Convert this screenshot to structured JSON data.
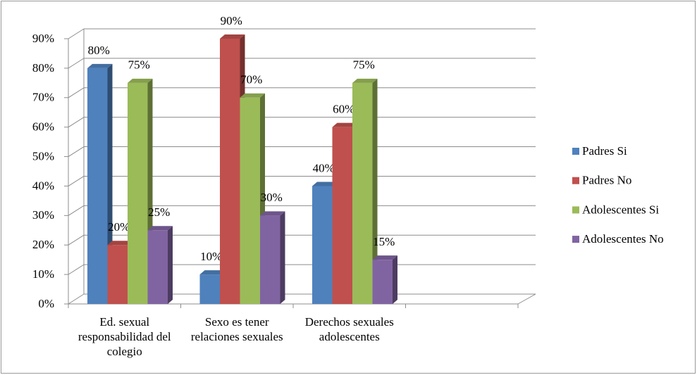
{
  "chart_data": {
    "type": "bar3d",
    "categories": [
      "Ed. sexual responsabilidad del colegio",
      "Sexo es tener relaciones sexuales",
      "Derechos sexuales adolescentes",
      null
    ],
    "series": [
      {
        "name": "Padres Si",
        "color": "#4f81bd",
        "values": [
          80,
          10,
          40,
          null
        ],
        "value_labels": [
          "80%",
          "10%",
          "40%",
          null
        ]
      },
      {
        "name": "Padres No",
        "color": "#c0504d",
        "values": [
          20,
          90,
          60,
          null
        ],
        "value_labels": [
          "20%",
          "90%",
          "60%",
          null
        ]
      },
      {
        "name": "Adolescentes Si",
        "color": "#9bbb59",
        "values": [
          75,
          70,
          75,
          null
        ],
        "value_labels": [
          "75%",
          "70%",
          "75%",
          null
        ]
      },
      {
        "name": "Adolescentes No",
        "color": "#8064a2",
        "values": [
          25,
          30,
          15,
          null
        ],
        "value_labels": [
          "25%",
          "30%",
          "15%",
          null
        ]
      }
    ],
    "ylim": [
      0,
      90
    ],
    "yticks": [
      {
        "value": 0,
        "label": "0%"
      },
      {
        "value": 10,
        "label": "10%"
      },
      {
        "value": 20,
        "label": "20%"
      },
      {
        "value": 30,
        "label": "30%"
      },
      {
        "value": 40,
        "label": "40%"
      },
      {
        "value": 50,
        "label": "50%"
      },
      {
        "value": 60,
        "label": "60%"
      },
      {
        "value": 70,
        "label": "70%"
      },
      {
        "value": 80,
        "label": "80%"
      },
      {
        "value": 90,
        "label": "90%"
      }
    ],
    "grid": true,
    "legend": "right"
  }
}
